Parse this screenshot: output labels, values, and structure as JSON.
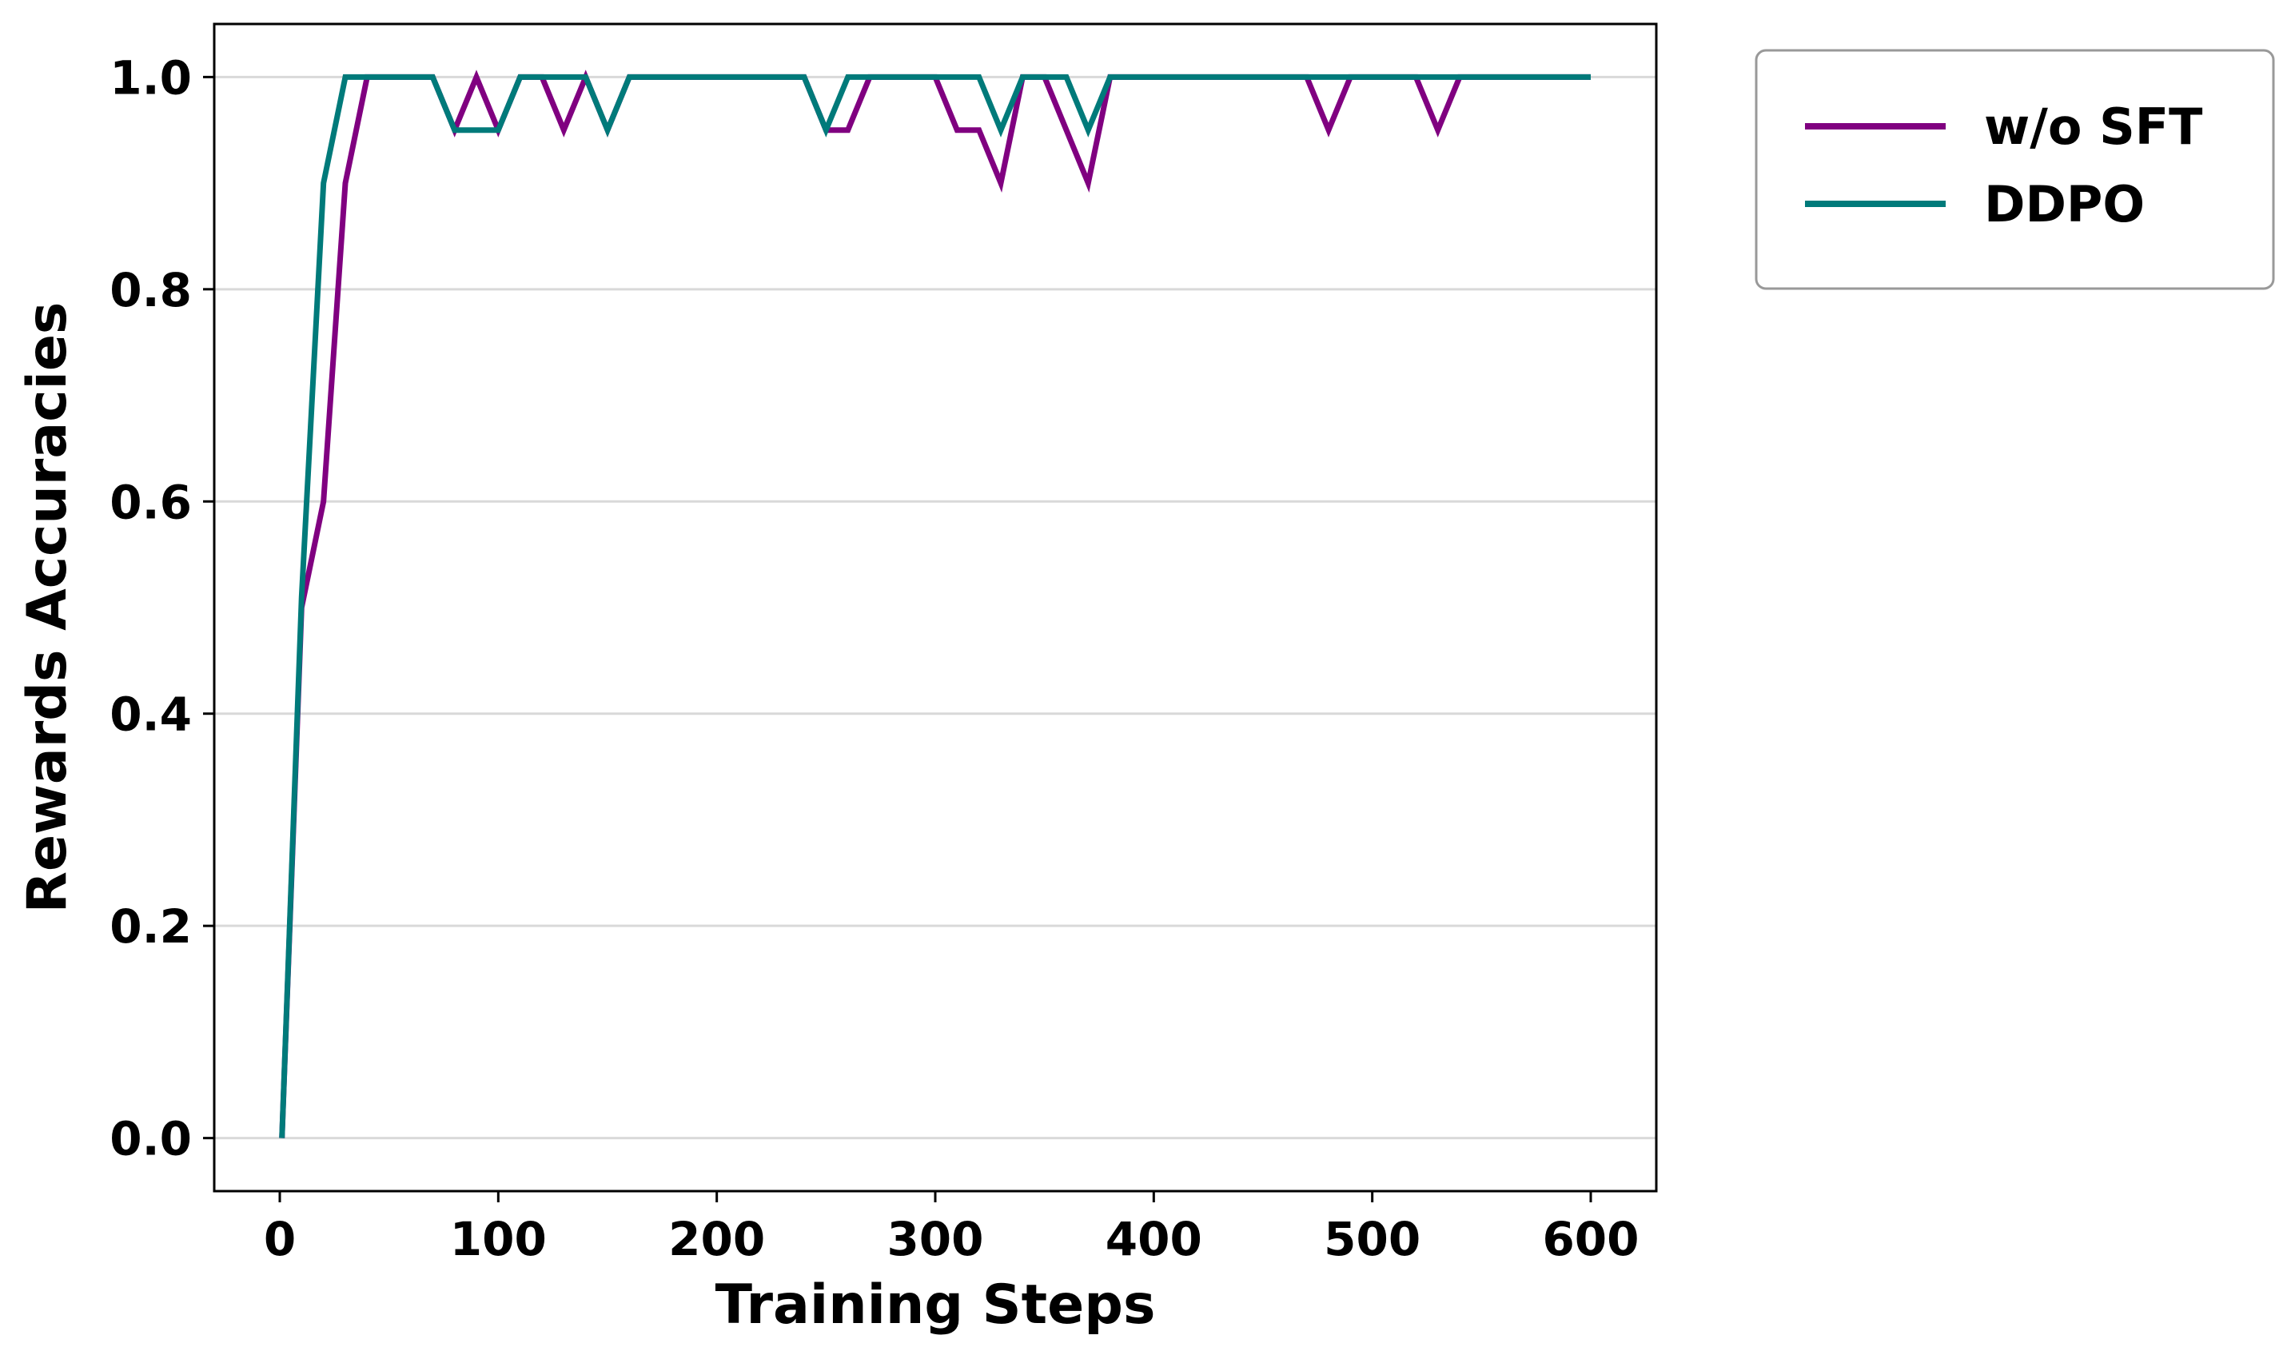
{
  "chart_data": {
    "type": "line",
    "title": "",
    "xlabel": "Training Steps",
    "ylabel": "Rewards Accuracies",
    "xlim": [
      -30,
      630
    ],
    "ylim": [
      -0.05,
      1.05
    ],
    "xticks": [
      0,
      100,
      200,
      300,
      400,
      500,
      600
    ],
    "yticks": [
      0.0,
      0.2,
      0.4,
      0.6,
      0.8,
      1.0
    ],
    "xtick_labels": [
      "0",
      "100",
      "200",
      "300",
      "400",
      "500",
      "600"
    ],
    "ytick_labels": [
      "0.0",
      "0.2",
      "0.4",
      "0.6",
      "0.8",
      "1.0"
    ],
    "grid": "horizontal",
    "legend_position": "outside-top-right",
    "series": [
      {
        "name": "w/o SFT",
        "color": "#800080",
        "x": [
          1,
          10,
          20,
          30,
          40,
          50,
          60,
          70,
          80,
          90,
          100,
          110,
          120,
          130,
          140,
          150,
          160,
          170,
          180,
          190,
          200,
          210,
          220,
          230,
          240,
          250,
          260,
          270,
          280,
          290,
          300,
          310,
          320,
          330,
          340,
          350,
          360,
          370,
          380,
          390,
          400,
          410,
          420,
          430,
          440,
          450,
          460,
          470,
          480,
          490,
          500,
          510,
          520,
          530,
          540,
          550,
          560,
          570,
          580,
          590,
          600
        ],
        "y": [
          0.0,
          0.5,
          0.6,
          0.9,
          1.0,
          1.0,
          1.0,
          1.0,
          0.95,
          1.0,
          0.95,
          1.0,
          1.0,
          0.95,
          1.0,
          0.95,
          1.0,
          1.0,
          1.0,
          1.0,
          1.0,
          1.0,
          1.0,
          1.0,
          1.0,
          0.95,
          0.95,
          1.0,
          1.0,
          1.0,
          1.0,
          0.95,
          0.95,
          0.9,
          1.0,
          1.0,
          0.95,
          0.9,
          1.0,
          1.0,
          1.0,
          1.0,
          1.0,
          1.0,
          1.0,
          1.0,
          1.0,
          1.0,
          0.95,
          1.0,
          1.0,
          1.0,
          1.0,
          0.95,
          1.0,
          1.0,
          1.0,
          1.0,
          1.0,
          1.0,
          1.0
        ]
      },
      {
        "name": "DDPO",
        "color": "#007a7a",
        "x": [
          1,
          10,
          20,
          30,
          40,
          50,
          60,
          70,
          80,
          90,
          100,
          110,
          120,
          130,
          140,
          150,
          160,
          170,
          180,
          190,
          200,
          210,
          220,
          230,
          240,
          250,
          260,
          270,
          280,
          290,
          300,
          310,
          320,
          330,
          340,
          350,
          360,
          370,
          380,
          390,
          400,
          410,
          420,
          430,
          440,
          450,
          460,
          470,
          480,
          490,
          500,
          510,
          520,
          530,
          540,
          550,
          560,
          570,
          580,
          590,
          600
        ],
        "y": [
          0.0,
          0.51,
          0.9,
          1.0,
          1.0,
          1.0,
          1.0,
          1.0,
          0.95,
          0.95,
          0.95,
          1.0,
          1.0,
          1.0,
          1.0,
          0.95,
          1.0,
          1.0,
          1.0,
          1.0,
          1.0,
          1.0,
          1.0,
          1.0,
          1.0,
          0.95,
          1.0,
          1.0,
          1.0,
          1.0,
          1.0,
          1.0,
          1.0,
          0.95,
          1.0,
          1.0,
          1.0,
          0.95,
          1.0,
          1.0,
          1.0,
          1.0,
          1.0,
          1.0,
          1.0,
          1.0,
          1.0,
          1.0,
          1.0,
          1.0,
          1.0,
          1.0,
          1.0,
          1.0,
          1.0,
          1.0,
          1.0,
          1.0,
          1.0,
          1.0,
          1.0
        ]
      }
    ]
  }
}
